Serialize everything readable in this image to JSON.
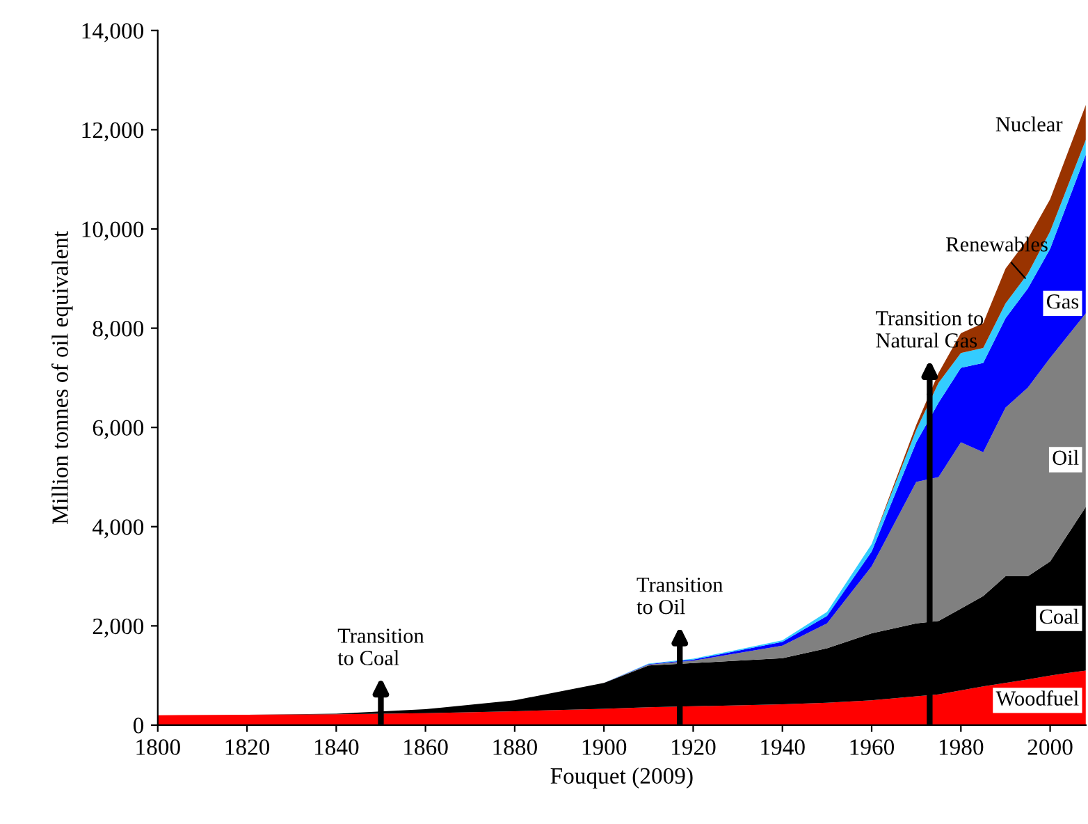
{
  "chart_data": {
    "type": "area",
    "stacked": true,
    "xlabel": "Fouquet (2009)",
    "ylabel": "Million tonnes of oil equivalent",
    "x": [
      1800,
      1820,
      1840,
      1860,
      1880,
      1900,
      1910,
      1920,
      1930,
      1940,
      1950,
      1960,
      1970,
      1975,
      1980,
      1985,
      1990,
      1995,
      2000,
      2008
    ],
    "series": [
      {
        "name": "Woodfuel",
        "color": "#ff0000",
        "values": [
          200,
          210,
          220,
          240,
          280,
          330,
          360,
          380,
          400,
          420,
          450,
          500,
          580,
          620,
          700,
          780,
          850,
          920,
          1000,
          1100
        ]
      },
      {
        "name": "Coal",
        "color": "#000000",
        "values": [
          0,
          0,
          10,
          80,
          220,
          520,
          840,
          870,
          900,
          930,
          1100,
          1350,
          1470,
          1480,
          1650,
          1820,
          2150,
          2080,
          2300,
          3300
        ]
      },
      {
        "name": "Oil",
        "color": "#808080",
        "values": [
          0,
          0,
          0,
          0,
          0,
          0,
          20,
          50,
          150,
          250,
          500,
          1350,
          2850,
          2900,
          3350,
          2900,
          3400,
          3800,
          4100,
          3900
        ]
      },
      {
        "name": "Gas",
        "color": "#0000ff",
        "values": [
          0,
          0,
          0,
          0,
          0,
          0,
          10,
          20,
          50,
          80,
          150,
          300,
          800,
          1500,
          1500,
          1800,
          1800,
          2000,
          2200,
          3200
        ]
      },
      {
        "name": "Renewables",
        "color": "#33ccff",
        "values": [
          0,
          0,
          0,
          0,
          0,
          0,
          10,
          20,
          20,
          30,
          80,
          150,
          250,
          400,
          300,
          300,
          300,
          300,
          350,
          300
        ]
      },
      {
        "name": "Nuclear",
        "color": "#993300",
        "values": [
          0,
          0,
          0,
          0,
          0,
          0,
          0,
          0,
          0,
          0,
          0,
          0,
          100,
          200,
          400,
          500,
          700,
          700,
          650,
          700
        ]
      }
    ],
    "annotations": [
      {
        "text": "Transition\nto Coal",
        "x": 1850,
        "y": 280
      },
      {
        "text": "Transition\nto Oil",
        "x": 1917,
        "y": 1310
      },
      {
        "text": "Transition to\nNatural Gas",
        "x": 1973,
        "y": 6680
      }
    ],
    "xlim": [
      1800,
      2008
    ],
    "xticks": [
      1800,
      1820,
      1840,
      1860,
      1880,
      1900,
      1920,
      1940,
      1960,
      1980,
      2000
    ],
    "ylim": [
      0,
      14000
    ],
    "yticks": [
      0,
      {
        "value": 2000,
        "label": "2,000"
      },
      {
        "value": 4000,
        "label": "4,000"
      },
      {
        "value": 6000,
        "label": "6,000"
      },
      {
        "value": 8000,
        "label": "8,000"
      },
      {
        "value": 10000,
        "label": "10,000"
      },
      {
        "value": 12000,
        "label": "12,000"
      },
      {
        "value": 14000,
        "label": "14,000"
      }
    ],
    "grid": false,
    "legend": false
  }
}
